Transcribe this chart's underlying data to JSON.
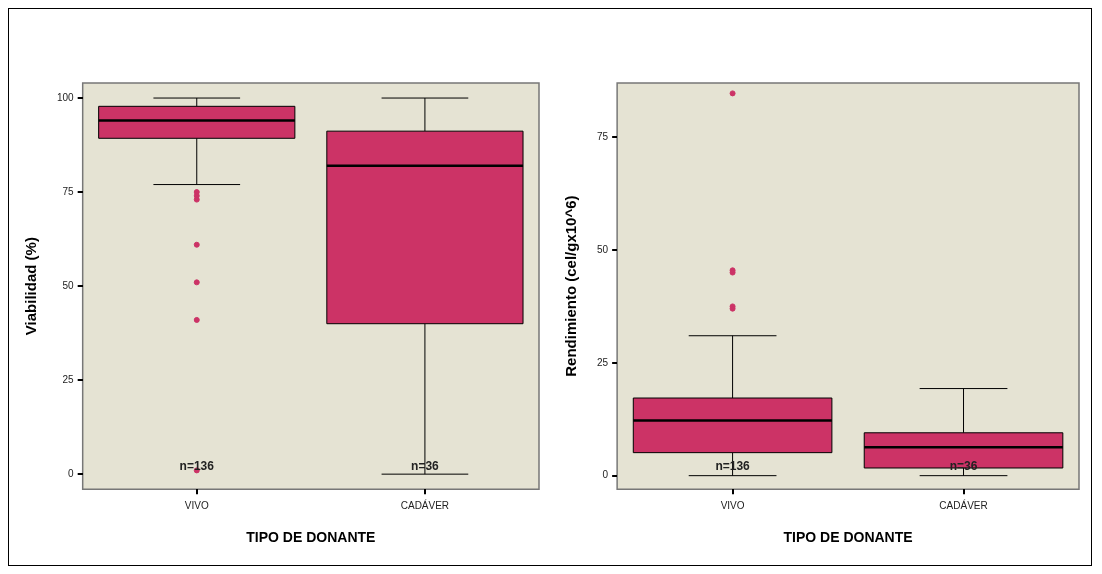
{
  "chart_data": [
    {
      "type": "box",
      "categories": [
        "VIVO",
        "CADÁVER"
      ],
      "xlabel": "TIPO DE DONANTE",
      "ylabel": "Viabilidad (%)",
      "ylim": [
        -4,
        104
      ],
      "yticks": [
        0,
        25,
        50,
        75,
        100
      ],
      "marker": "circle",
      "series": [
        {
          "color": "#cc3366",
          "boxes": [
            {
              "low": 77,
              "q1": 89.3,
              "median": 94,
              "q3": 97.8,
              "high": 100,
              "outliers": [
                75,
                74,
                73,
                61,
                51,
                41,
                1
              ]
            },
            {
              "low": 0,
              "q1": 40,
              "median": 82,
              "q3": 91.2,
              "high": 100
            }
          ]
        }
      ],
      "annotations": [
        "n=136",
        "n=36"
      ]
    },
    {
      "type": "box",
      "categories": [
        "VIVO",
        "CADÁVER"
      ],
      "xlabel": "TIPO DE DONANTE",
      "ylabel": "Rendimiento (cel/gx10^6)",
      "ylim": [
        -3,
        87
      ],
      "yticks": [
        0,
        25,
        50,
        75
      ],
      "marker": "circle",
      "series": [
        {
          "color": "#cc3366",
          "boxes": [
            {
              "low": 0,
              "q1": 5.1,
              "median": 12.2,
              "q3": 17.2,
              "high": 31,
              "outliers": [
                84.7,
                45.5,
                45,
                37.5,
                37
              ]
            },
            {
              "low": 0,
              "q1": 1.7,
              "median": 6.3,
              "q3": 9.5,
              "high": 19.3
            }
          ]
        }
      ],
      "annotations": [
        "n=136",
        "n=36"
      ]
    }
  ]
}
